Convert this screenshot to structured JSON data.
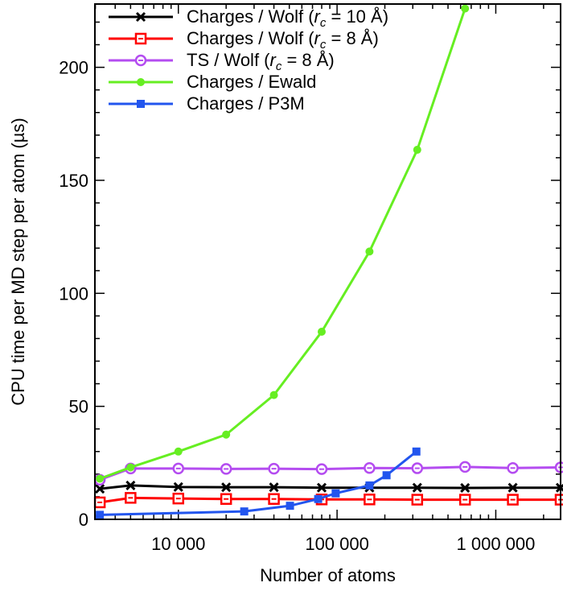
{
  "chart_data": {
    "type": "line",
    "xlabel": "Number of atoms",
    "ylabel": "CPU time per MD step per atom (µs)",
    "xscale": "log",
    "xlim": [
      2980,
      2560000
    ],
    "ylim": [
      0,
      228
    ],
    "xticks": [
      {
        "v": 10000,
        "label": "10 000"
      },
      {
        "v": 100000,
        "label": "100 000"
      },
      {
        "v": 1000000,
        "label": "1 000 000"
      }
    ],
    "yticks": [
      0,
      50,
      100,
      150,
      200
    ],
    "legend_position": "top-left",
    "series": [
      {
        "name": "Charges / Wolf (rc = 10 Å)",
        "label_main": "Charges / Wolf (",
        "label_sub": "c",
        "label_tail": " = 10 Å)",
        "color": "#000000",
        "marker": "x",
        "x": [
          3200,
          5000,
          10000,
          20000,
          40000,
          80000,
          160000,
          320000,
          640000,
          1280000,
          2560000
        ],
        "y": [
          13.5,
          15,
          14.3,
          14.2,
          14.2,
          14,
          14,
          14,
          13.9,
          14,
          14
        ]
      },
      {
        "name": "Charges / Wolf (rc = 8 Å)",
        "label_main": "Charges / Wolf (",
        "label_sub": "c",
        "label_tail": " = 8 Å)",
        "color": "#ff0000",
        "marker": "open-square",
        "x": [
          3200,
          5000,
          10000,
          20000,
          40000,
          80000,
          160000,
          320000,
          640000,
          1280000,
          2560000
        ],
        "y": [
          7.5,
          9.5,
          9.2,
          9,
          9,
          8.8,
          8.8,
          8.7,
          8.7,
          8.7,
          8.7
        ]
      },
      {
        "name": "TS / Wolf (rc = 8 Å)",
        "label_main": "TS / Wolf (",
        "label_sub": "c",
        "label_tail": " = 8 Å)",
        "color": "#b44cf0",
        "marker": "open-circle",
        "x": [
          3200,
          5000,
          10000,
          20000,
          40000,
          80000,
          160000,
          320000,
          640000,
          1280000,
          2560000
        ],
        "y": [
          17.5,
          22.5,
          22.5,
          22.3,
          22.4,
          22.2,
          22.7,
          22.6,
          23.2,
          22.7,
          23
        ]
      },
      {
        "name": "Charges / Ewald",
        "label_main": "Charges / Ewald",
        "color": "#66ee22",
        "marker": "filled-circle",
        "x": [
          3200,
          5000,
          10000,
          20000,
          40000,
          80000,
          160000,
          320000,
          640000
        ],
        "y": [
          18,
          23,
          30,
          37.5,
          55,
          83,
          118.5,
          163.5,
          226
        ]
      },
      {
        "name": "Charges / P3M",
        "label_main": "Charges / P3M",
        "color": "#2255ee",
        "marker": "filled-square",
        "x": [
          3200,
          26000,
          50500,
          76000,
          98000,
          160000,
          205000,
          316000
        ],
        "y": [
          2,
          3.5,
          6,
          9,
          11.5,
          15,
          19.5,
          30
        ]
      }
    ]
  }
}
